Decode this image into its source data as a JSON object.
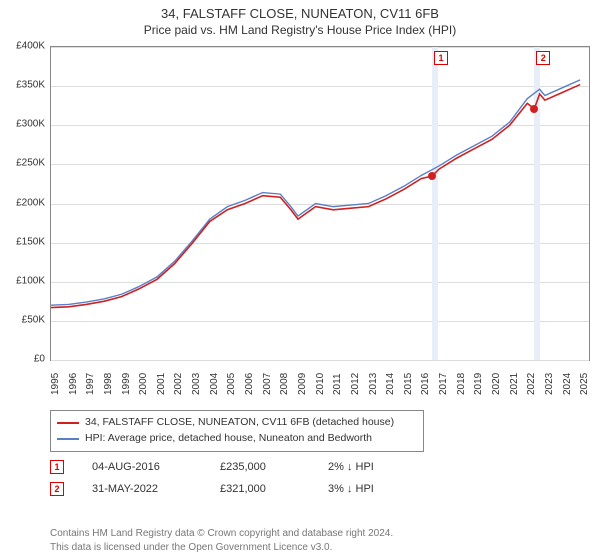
{
  "title_line1": "34, FALSTAFF CLOSE, NUNEATON, CV11 6FB",
  "title_line2": "Price paid vs. HM Land Registry's House Price Index (HPI)",
  "chart": {
    "type": "line",
    "x_years": [
      1995,
      1996,
      1997,
      1998,
      1999,
      2000,
      2001,
      2002,
      2003,
      2004,
      2005,
      2006,
      2007,
      2008,
      2009,
      2010,
      2011,
      2012,
      2013,
      2014,
      2015,
      2016,
      2017,
      2018,
      2019,
      2020,
      2021,
      2022,
      2023,
      2024,
      2025
    ],
    "x_min": 1995,
    "x_max": 2025.5,
    "ylim": [
      0,
      400000
    ],
    "ytick_step": 50000,
    "ytick_labels": [
      "£0",
      "£50K",
      "£100K",
      "£150K",
      "£200K",
      "£250K",
      "£300K",
      "£350K",
      "£400K"
    ],
    "grid_color": "#dddddd",
    "border_color": "#888888",
    "background_color": "#ffffff",
    "band_color": "#e8eef8",
    "series": [
      {
        "name": "hpi",
        "color": "#5b7fc7",
        "width": 1.4,
        "label": "HPI: Average price, detached house, Nuneaton and Bedworth",
        "points": [
          [
            1995,
            70000
          ],
          [
            1996,
            71000
          ],
          [
            1997,
            74000
          ],
          [
            1998,
            78000
          ],
          [
            1999,
            84000
          ],
          [
            2000,
            94000
          ],
          [
            2001,
            106000
          ],
          [
            2002,
            126000
          ],
          [
            2003,
            152000
          ],
          [
            2004,
            180000
          ],
          [
            2005,
            196000
          ],
          [
            2006,
            204000
          ],
          [
            2007,
            214000
          ],
          [
            2008,
            212000
          ],
          [
            2008.6,
            196000
          ],
          [
            2009,
            184000
          ],
          [
            2009.5,
            192000
          ],
          [
            2010,
            200000
          ],
          [
            2011,
            196000
          ],
          [
            2012,
            198000
          ],
          [
            2013,
            200000
          ],
          [
            2014,
            210000
          ],
          [
            2015,
            222000
          ],
          [
            2016,
            236000
          ],
          [
            2017,
            248000
          ],
          [
            2018,
            262000
          ],
          [
            2019,
            274000
          ],
          [
            2020,
            286000
          ],
          [
            2021,
            304000
          ],
          [
            2022,
            334000
          ],
          [
            2022.7,
            346000
          ],
          [
            2023,
            338000
          ],
          [
            2024,
            348000
          ],
          [
            2025,
            358000
          ]
        ]
      },
      {
        "name": "property",
        "color": "#d02020",
        "width": 1.6,
        "label": "34, FALSTAFF CLOSE, NUNEATON, CV11 6FB (detached house)",
        "points": [
          [
            1995,
            67000
          ],
          [
            1996,
            68000
          ],
          [
            1997,
            71000
          ],
          [
            1998,
            75000
          ],
          [
            1999,
            81000
          ],
          [
            2000,
            91000
          ],
          [
            2001,
            103000
          ],
          [
            2002,
            123000
          ],
          [
            2003,
            149000
          ],
          [
            2004,
            177000
          ],
          [
            2005,
            192000
          ],
          [
            2006,
            200000
          ],
          [
            2007,
            210000
          ],
          [
            2008,
            208000
          ],
          [
            2008.6,
            192000
          ],
          [
            2009,
            180000
          ],
          [
            2009.5,
            188000
          ],
          [
            2010,
            196000
          ],
          [
            2011,
            192000
          ],
          [
            2012,
            194000
          ],
          [
            2013,
            196000
          ],
          [
            2014,
            206000
          ],
          [
            2015,
            218000
          ],
          [
            2016,
            232000
          ],
          [
            2016.6,
            235000
          ],
          [
            2017,
            244000
          ],
          [
            2018,
            258000
          ],
          [
            2019,
            270000
          ],
          [
            2020,
            282000
          ],
          [
            2021,
            300000
          ],
          [
            2022,
            328000
          ],
          [
            2022.4,
            321000
          ],
          [
            2022.7,
            340000
          ],
          [
            2023,
            332000
          ],
          [
            2024,
            342000
          ],
          [
            2025,
            352000
          ]
        ]
      }
    ],
    "bands": [
      {
        "x": 2016.6,
        "width_years": 0.35
      },
      {
        "x": 2022.4,
        "width_years": 0.35
      }
    ],
    "sale_markers": [
      {
        "num": "1",
        "x": 2016.6,
        "y": 235000,
        "dot_color": "#d02020"
      },
      {
        "num": "2",
        "x": 2022.4,
        "y": 321000,
        "dot_color": "#d02020"
      }
    ]
  },
  "legend": {
    "items": [
      {
        "color": "#d02020",
        "text": "34, FALSTAFF CLOSE, NUNEATON, CV11 6FB (detached house)"
      },
      {
        "color": "#5b7fc7",
        "text": "HPI: Average price, detached house, Nuneaton and Bedworth"
      }
    ]
  },
  "sales": [
    {
      "num": "1",
      "date": "04-AUG-2016",
      "price": "£235,000",
      "diff": "2% ↓ HPI"
    },
    {
      "num": "2",
      "date": "31-MAY-2022",
      "price": "£321,000",
      "diff": "3% ↓ HPI"
    }
  ],
  "footer_line1": "Contains HM Land Registry data © Crown copyright and database right 2024.",
  "footer_line2": "This data is licensed under the Open Government Licence v3.0."
}
